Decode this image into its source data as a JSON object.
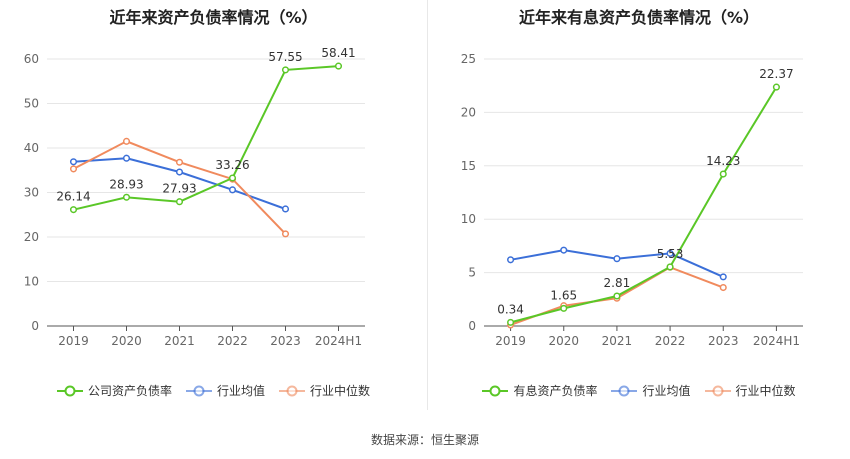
{
  "source": "数据来源：恒生聚源",
  "chart_data": [
    {
      "type": "line",
      "title": "近年来资产负债率情况（%）",
      "categories": [
        "2019",
        "2020",
        "2021",
        "2022",
        "2023",
        "2024H1"
      ],
      "ylim": [
        0,
        60
      ],
      "yticks": [
        0,
        10,
        20,
        30,
        40,
        50,
        60
      ],
      "series": [
        {
          "name": "公司资产负债率",
          "color": "#5ac727",
          "values": [
            26.14,
            28.93,
            27.93,
            33.26,
            57.55,
            58.41
          ],
          "labels": [
            "26.14",
            "28.93",
            "27.93",
            "33.26",
            "57.55",
            "58.41"
          ]
        },
        {
          "name": "行业均值",
          "color": "#3b6fd8",
          "values": [
            36.9,
            37.7,
            34.6,
            30.6,
            26.3,
            null
          ]
        },
        {
          "name": "行业中位数",
          "color": "#f08a5d",
          "values": [
            35.3,
            41.5,
            36.8,
            33.0,
            20.7,
            null
          ]
        }
      ]
    },
    {
      "type": "line",
      "title": "近年来有息资产负债率情况（%）",
      "categories": [
        "2019",
        "2020",
        "2021",
        "2022",
        "2023",
        "2024H1"
      ],
      "ylim": [
        0,
        25
      ],
      "yticks": [
        0,
        5,
        10,
        15,
        20,
        25
      ],
      "series": [
        {
          "name": "有息资产负债率",
          "color": "#5ac727",
          "values": [
            0.34,
            1.65,
            2.81,
            5.53,
            14.23,
            22.37
          ],
          "labels": [
            "0.34",
            "1.65",
            "2.81",
            "5.53",
            "14.23",
            "22.37"
          ]
        },
        {
          "name": "行业均值",
          "color": "#3b6fd8",
          "values": [
            6.2,
            7.1,
            6.3,
            6.8,
            4.6,
            null
          ]
        },
        {
          "name": "行业中位数",
          "color": "#f08a5d",
          "values": [
            0.1,
            1.9,
            2.6,
            5.5,
            3.6,
            null
          ]
        }
      ]
    }
  ]
}
